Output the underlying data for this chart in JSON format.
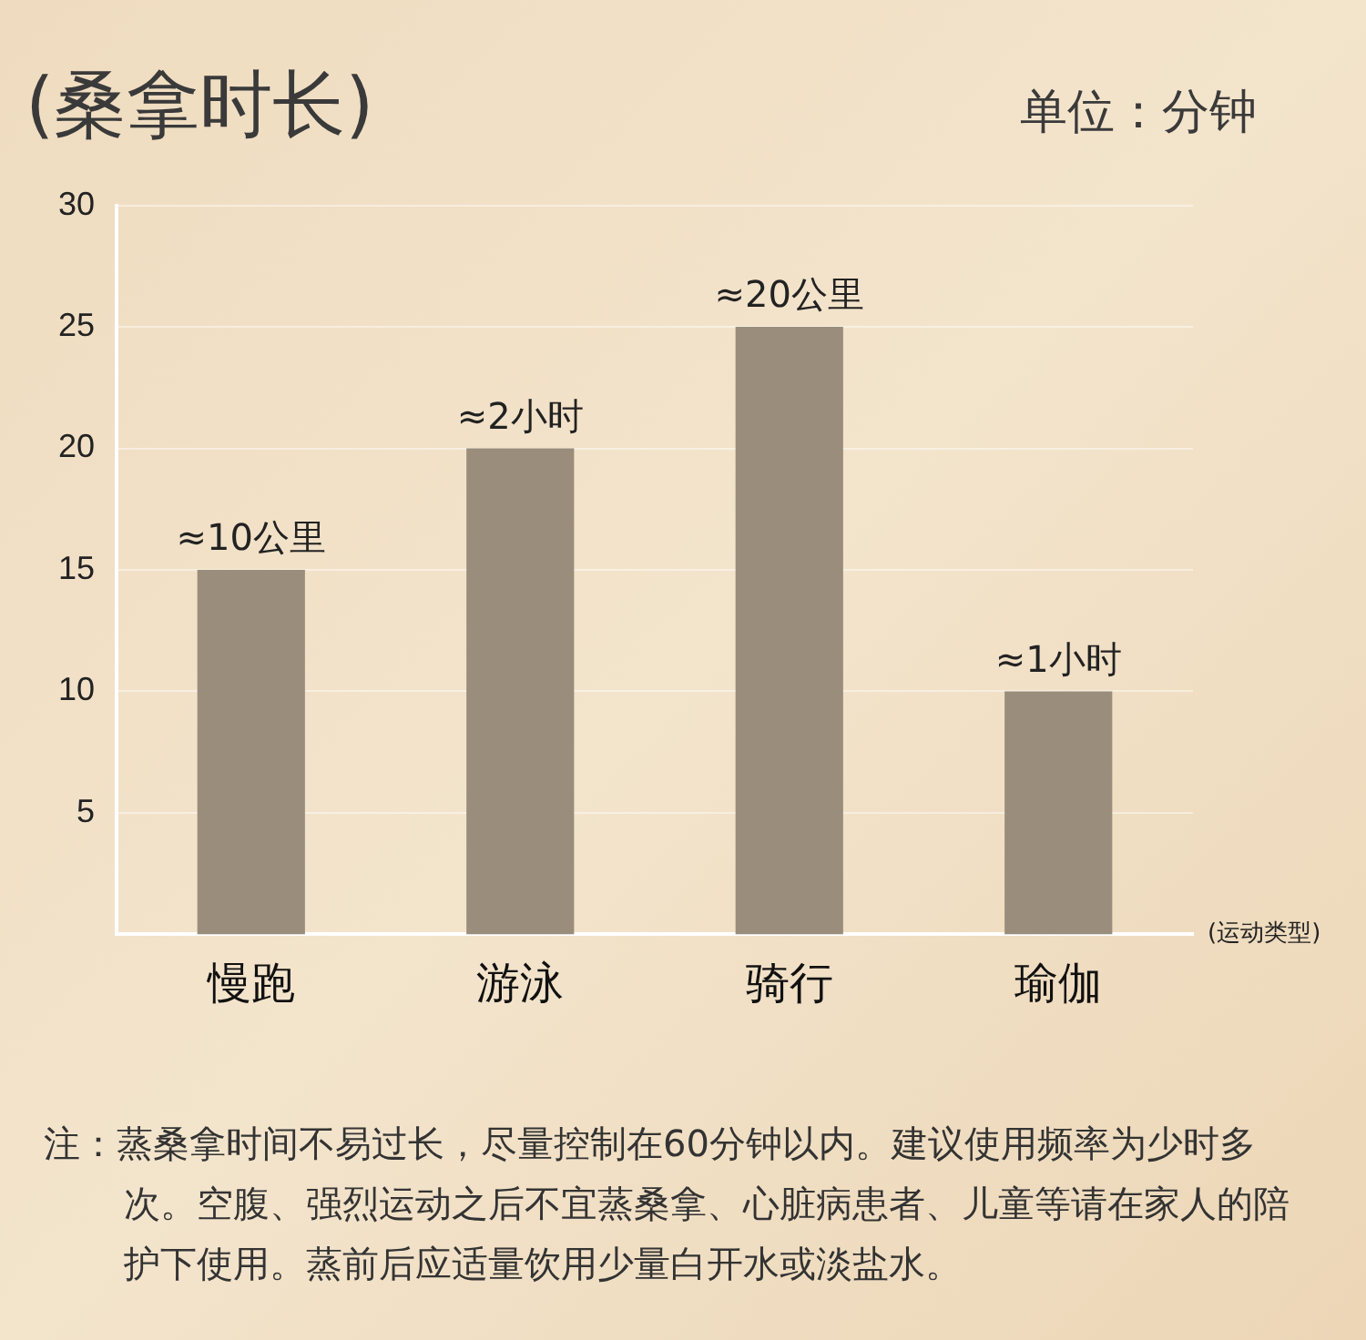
{
  "chart_data": {
    "type": "bar",
    "title": "(桑拿时长)",
    "xlabel": "(运动类型)",
    "categories": [
      "慢跑",
      "游泳",
      "骑行",
      "瑜伽"
    ],
    "values": [
      15,
      20,
      25,
      10
    ],
    "color": "#9a8d7c",
    "ylim": [
      0,
      30
    ],
    "yticks": [
      5,
      10,
      15,
      20,
      25,
      30
    ],
    "grid": "y",
    "annotations": [
      "单位：分钟",
      "注：蒸桑拿时间不易过长，尽量控制在60分钟以内。建议使用频率为少时多次。空腹、强烈运动之后不宜蒸桑拿、心脏病患者、儿童等请在家人的陪护下使用。蒸前后应适量饮用少量白开水或淡盐水。",
      {
        "text": "≈10公里",
        "x": "慢跑",
        "y": 15
      },
      {
        "text": "≈2小时",
        "x": "游泳",
        "y": 20
      },
      {
        "text": "≈20公里",
        "x": "骑行",
        "y": 25
      },
      {
        "text": "≈1小时",
        "x": "瑜伽",
        "y": 10
      }
    ]
  }
}
